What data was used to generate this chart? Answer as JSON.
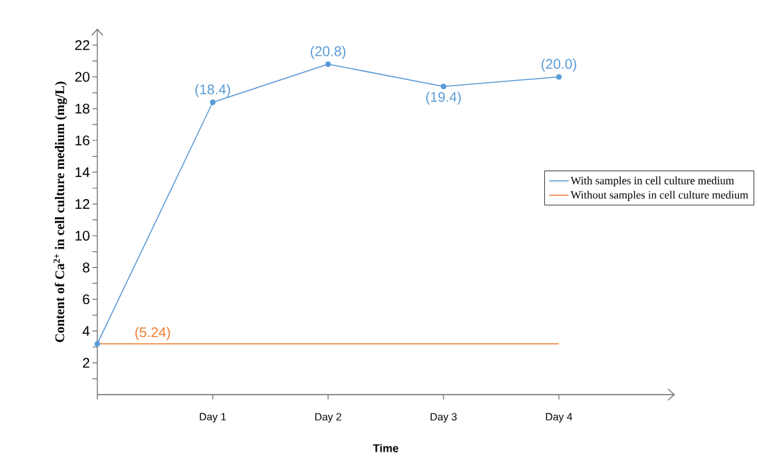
{
  "chart_data": {
    "type": "line",
    "xlabel": "Time",
    "ylabel": "Content of Ca$^{2+}$ in cell culture medium (mg/L)",
    "categories": [
      null,
      "Day 1",
      "Day 2",
      "Day 3",
      "Day 4"
    ],
    "ylim": [
      0,
      23
    ],
    "yticks": [
      {
        "value": 1,
        "label": null
      },
      2,
      {
        "value": 3,
        "label": null
      },
      4,
      {
        "value": 5,
        "label": null
      },
      6,
      {
        "value": 7,
        "label": null
      },
      8,
      {
        "value": 9,
        "label": null
      },
      10,
      {
        "value": 11,
        "label": null
      },
      12,
      {
        "value": 13,
        "label": null
      },
      14,
      {
        "value": 15,
        "label": null
      },
      16,
      {
        "value": 17,
        "label": null
      },
      18,
      {
        "value": 19,
        "label": null
      },
      20,
      {
        "value": 21,
        "label": null
      },
      22
    ],
    "series": [
      {
        "name": "With samples in cell culture medium",
        "color": "#5b9bd5",
        "marker": "circle",
        "values": [
          3.2,
          18.4,
          20.8,
          19.4,
          20.0
        ],
        "value_labels": [
          null,
          "(18.4)",
          "(20.8)",
          "(19.4)",
          "(20.0)"
        ]
      },
      {
        "name": "Without samples in cell culture medium",
        "color": "#ed7d31",
        "marker": "none",
        "values": [
          3.2,
          3.2,
          3.2,
          3.2,
          3.2
        ]
      }
    ],
    "annotations": [
      {
        "text": "(5.24)",
        "y": 3.2
      }
    ],
    "legend": "right"
  }
}
